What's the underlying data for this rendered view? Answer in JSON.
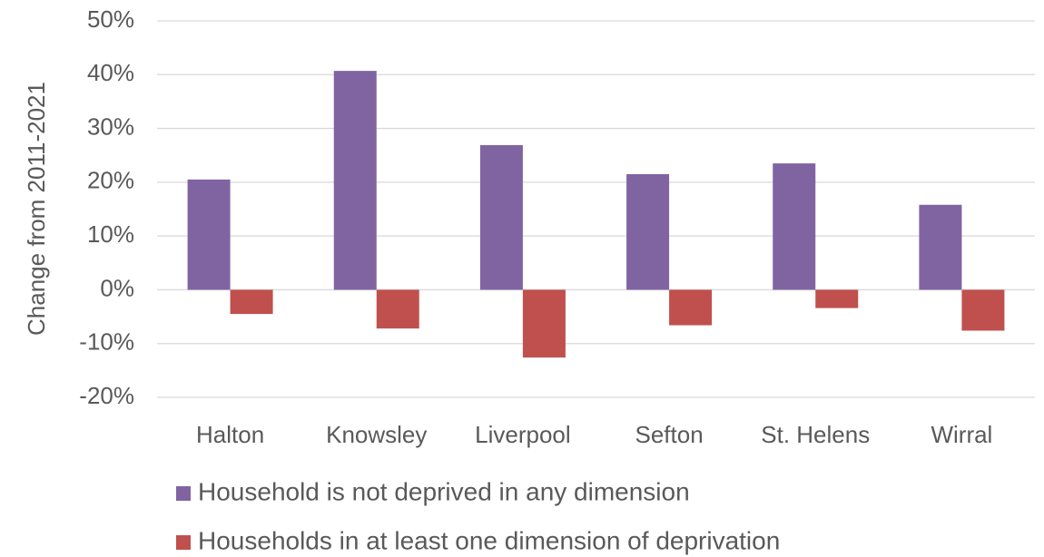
{
  "chart_data": {
    "type": "bar",
    "y_label": "Change from 2011-2021",
    "categories": [
      "Halton",
      "Knowsley",
      "Liverpool",
      "Sefton",
      "St. Helens",
      "Wirral"
    ],
    "series": [
      {
        "name": "Household is not deprived in any dimension",
        "color": "#8064a2",
        "values": [
          20.5,
          40.7,
          26.9,
          21.5,
          23.5,
          15.8
        ]
      },
      {
        "name": "Households in at least one dimension of deprivation",
        "color": "#c0504d",
        "values": [
          -4.5,
          -7.2,
          -12.6,
          -6.6,
          -3.4,
          -7.6
        ]
      }
    ],
    "ylim": [
      -20,
      50
    ],
    "yticks": [
      {
        "value": -20,
        "label": "-20%"
      },
      {
        "value": -10,
        "label": "-10%"
      },
      {
        "value": 0,
        "label": "0%"
      },
      {
        "value": 10,
        "label": "10%"
      },
      {
        "value": 20,
        "label": "20%"
      },
      {
        "value": 30,
        "label": "30%"
      },
      {
        "value": 40,
        "label": "40%"
      },
      {
        "value": 50,
        "label": "50%"
      }
    ],
    "grid": true,
    "legend": "bottom"
  }
}
